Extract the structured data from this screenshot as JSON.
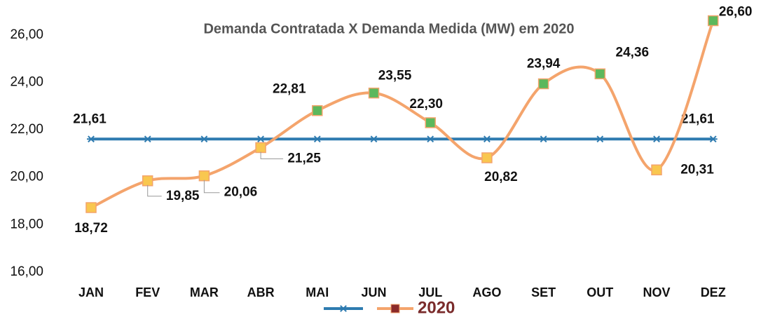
{
  "chart_data": {
    "type": "line",
    "title": "Demanda Contratada X Demanda Medida (MW) em 2020",
    "categories": [
      "JAN",
      "FEV",
      "MAR",
      "ABR",
      "MAI",
      "JUN",
      "JUL",
      "AGO",
      "SET",
      "OUT",
      "NOV",
      "DEZ"
    ],
    "series": [
      {
        "color": "#2e7bb0",
        "label_color": "#1f6e99",
        "values": [
          21.61,
          21.61,
          21.61,
          21.61,
          21.61,
          21.61,
          21.61,
          21.61,
          21.61,
          21.61,
          21.61,
          21.61
        ],
        "value_labels": [
          "21,61",
          null,
          null,
          null,
          null,
          null,
          null,
          null,
          null,
          null,
          null,
          "21,61"
        ]
      },
      {
        "name": "2020",
        "color": "#f4a46c",
        "marker_colors": [
          "#f9c74f",
          "#f9c74f",
          "#f9c74f",
          "#f9c74f",
          "#5cb85c",
          "#5cb85c",
          "#5cb85c",
          "#f9c74f",
          "#5cb85c",
          "#5cb85c",
          "#f9c74f",
          "#5cb85c"
        ],
        "values": [
          18.72,
          19.85,
          20.06,
          21.25,
          22.81,
          23.55,
          22.3,
          20.82,
          23.94,
          24.36,
          20.31,
          26.6
        ],
        "value_labels": [
          "18,72",
          "19,85",
          "20,06",
          "21,25",
          "22,81",
          "23,55",
          "22,30",
          "20,82",
          "23,94",
          "24,36",
          "20,31",
          "26,60"
        ]
      }
    ],
    "ylim": [
      16,
      27
    ],
    "yticks": [
      {
        "value": 16,
        "label": "16,00"
      },
      {
        "value": 18,
        "label": "18,00"
      },
      {
        "value": 20,
        "label": "20,00"
      },
      {
        "value": 22,
        "label": "22,00"
      },
      {
        "value": 24,
        "label": "24,00"
      },
      {
        "value": 26,
        "label": "26,00"
      }
    ],
    "grid": false
  }
}
